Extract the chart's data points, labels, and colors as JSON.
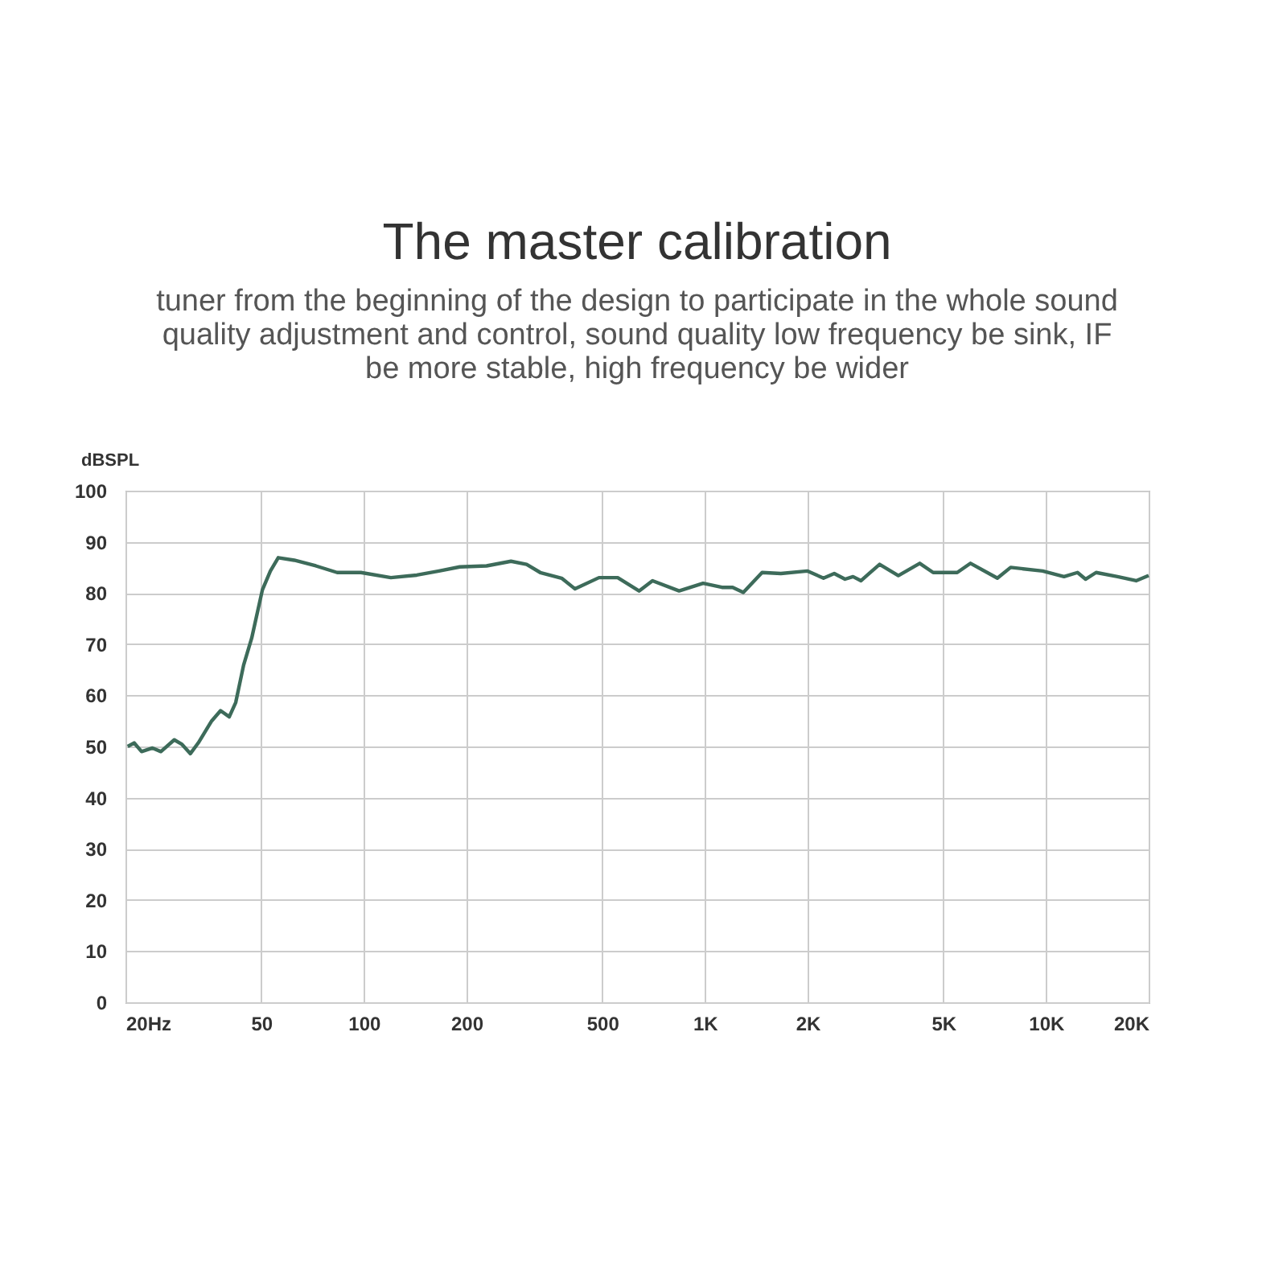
{
  "chart_data": {
    "type": "line",
    "title": "The master calibration",
    "subtitle": "tuner from the beginning of the design to participate in the whole sound quality adjustment and control, sound quality low frequency be sink, IF be more stable, high frequency be wider",
    "ylabel": "dBSPL",
    "x": [
      20.3,
      21.2,
      22.3,
      24,
      25.4,
      27.8,
      29.3,
      31,
      32.7,
      35.8,
      38,
      40.3,
      42.1,
      44.4,
      46.9,
      50.4,
      53.2,
      56.1,
      62.5,
      72.3,
      83.5,
      98,
      120,
      143,
      166,
      191,
      229,
      270,
      300,
      329,
      380,
      416,
      489,
      555,
      641,
      702,
      840,
      988,
      1122,
      1206,
      1296,
      1471,
      1670,
      1995,
      2227,
      2394,
      2575,
      2718,
      2869,
      3027,
      3252,
      3691,
      4264,
      4669,
      5492,
      6009,
      7203,
      7879,
      9780,
      11295,
      12373,
      13061,
      14025,
      16212,
      18379,
      20000
    ],
    "series": [
      {
        "color": "#3d6b5a",
        "values": [
          50,
          50.7,
          49,
          49.7,
          49,
          51.3,
          50.4,
          48.6,
          50.7,
          55,
          57,
          55.8,
          58.6,
          65.9,
          71.2,
          80.6,
          84.3,
          86.9,
          86.4,
          85.3,
          84,
          84,
          83,
          83.5,
          84.3,
          85.1,
          85.3,
          86.2,
          85.6,
          84,
          82.9,
          80.8,
          83,
          83,
          80.4,
          82.4,
          80.4,
          81.9,
          81.1,
          81.1,
          80.1,
          84,
          83.8,
          84.3,
          82.9,
          83.8,
          82.7,
          83.2,
          82.4,
          83.8,
          85.6,
          83.4,
          85.8,
          84,
          84,
          85.8,
          82.9,
          85,
          84.3,
          83.2,
          84,
          82.7,
          84,
          83.2,
          82.4,
          83.4
        ]
      }
    ],
    "log": "x",
    "xlim": [
      20,
      20000
    ],
    "xticks": [
      {
        "value": 20,
        "label": "20Hz"
      },
      50,
      100,
      200,
      500,
      {
        "value": 1000,
        "label": "1K"
      },
      {
        "value": 2000,
        "label": "2K"
      },
      {
        "value": 5000,
        "label": "5K"
      },
      {
        "value": 10000,
        "label": "10K"
      },
      {
        "value": 20000,
        "label": "20K"
      }
    ],
    "ylim": [
      0,
      100
    ],
    "yticks": [
      0,
      10,
      20,
      30,
      40,
      50,
      60,
      70,
      80,
      90,
      100
    ],
    "grid": true,
    "marker": "none",
    "line_style": "solid"
  }
}
